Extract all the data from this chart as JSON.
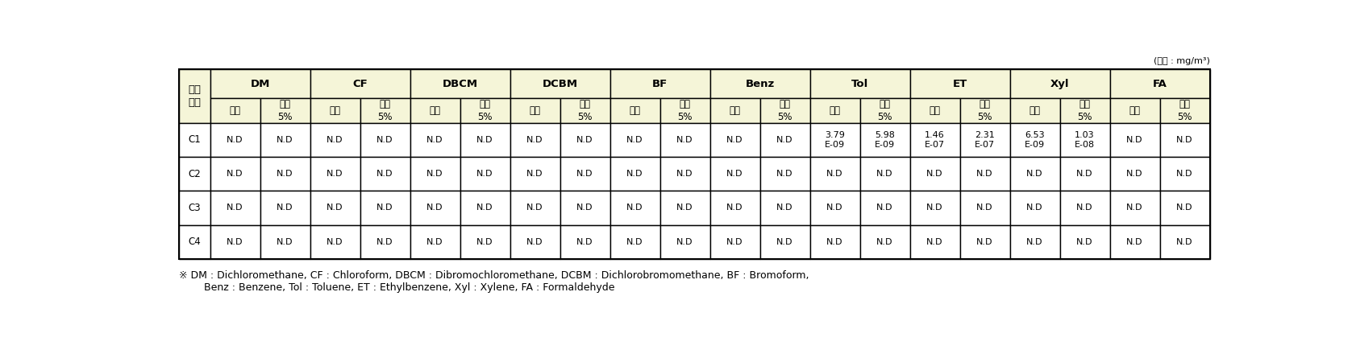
{
  "unit_text": "(단위 : mg/m³)",
  "col_groups": [
    {
      "label": "DM",
      "span": 2
    },
    {
      "label": "CF",
      "span": 2
    },
    {
      "label": "DBCM",
      "span": 2
    },
    {
      "label": "DCBM",
      "span": 2
    },
    {
      "label": "BF",
      "span": 2
    },
    {
      "label": "Benz",
      "span": 2
    },
    {
      "label": "Tol",
      "span": 2
    },
    {
      "label": "ET",
      "span": 2
    },
    {
      "label": "Xyl",
      "span": 2
    },
    {
      "label": "FA",
      "span": 2
    }
  ],
  "subheader": [
    "평균",
    "상위\n5%",
    "평균",
    "상위\n5%",
    "평균",
    "상위\n5%",
    "평균",
    "상위\n5%",
    "평균",
    "상위\n5%",
    "평균",
    "상위\n5%",
    "평균",
    "상위\n5%",
    "평균",
    "상위\n5%",
    "평균",
    "상위\n5%",
    "평균",
    "상위\n5%"
  ],
  "rows": [
    {
      "label": "C1",
      "values": [
        "N.D",
        "N.D",
        "N.D",
        "N.D",
        "N.D",
        "N.D",
        "N.D",
        "N.D",
        "N.D",
        "N.D",
        "N.D",
        "N.D",
        "3.79\nE-09",
        "5.98\nE-09",
        "1.46\nE-07",
        "2.31\nE-07",
        "6.53\nE-09",
        "1.03\nE-08",
        "N.D",
        "N.D"
      ]
    },
    {
      "label": "C2",
      "values": [
        "N.D",
        "N.D",
        "N.D",
        "N.D",
        "N.D",
        "N.D",
        "N.D",
        "N.D",
        "N.D",
        "N.D",
        "N.D",
        "N.D",
        "N.D",
        "N.D",
        "N.D",
        "N.D",
        "N.D",
        "N.D",
        "N.D",
        "N.D"
      ]
    },
    {
      "label": "C3",
      "values": [
        "N.D",
        "N.D",
        "N.D",
        "N.D",
        "N.D",
        "N.D",
        "N.D",
        "N.D",
        "N.D",
        "N.D",
        "N.D",
        "N.D",
        "N.D",
        "N.D",
        "N.D",
        "N.D",
        "N.D",
        "N.D",
        "N.D",
        "N.D"
      ]
    },
    {
      "label": "C4",
      "values": [
        "N.D",
        "N.D",
        "N.D",
        "N.D",
        "N.D",
        "N.D",
        "N.D",
        "N.D",
        "N.D",
        "N.D",
        "N.D",
        "N.D",
        "N.D",
        "N.D",
        "N.D",
        "N.D",
        "N.D",
        "N.D",
        "N.D",
        "N.D"
      ]
    }
  ],
  "footnote1": "※ DM : Dichloromethane, CF : Chloroform, DBCM : Dibromochloromethane, DCBM : Dichlorobromomethane, BF : Bromoform,",
  "footnote2": "    Benz : Benzene, Tol : Toluene, ET : Ethylbenzene, Xyl : Xylene, FA : Formaldehyde",
  "header_bg": "#f5f5d8",
  "body_bg": "#ffffff",
  "border_color": "#000000",
  "text_color": "#000000",
  "font_size": 8.5,
  "header_font_size": 9.5,
  "unit_font_size": 8.0,
  "footnote_font_size": 9.0
}
